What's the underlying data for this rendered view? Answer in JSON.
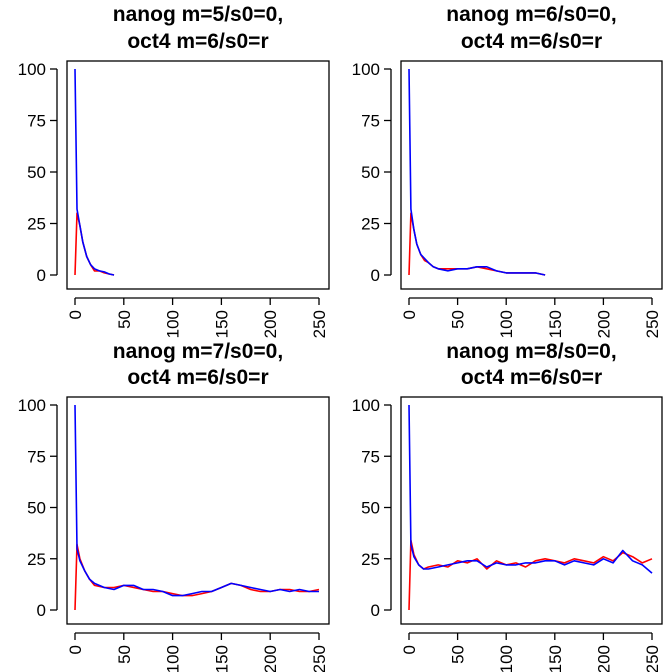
{
  "chart_data": [
    {
      "type": "line",
      "title": [
        "nanog m=5/s0=0,",
        "oct4 m=6/s0=r"
      ],
      "xlabel": "",
      "ylabel": "",
      "xlim": [
        0,
        250
      ],
      "ylim": [
        0,
        100
      ],
      "xticks": [
        "0",
        "50",
        "100",
        "150",
        "200",
        "250"
      ],
      "yticks": [
        "0",
        "25",
        "50",
        "75",
        "100"
      ],
      "series": [
        {
          "color": "#ff0000",
          "x": [
            0,
            2,
            5,
            8,
            12,
            16,
            20,
            25,
            30,
            35,
            40
          ],
          "y": [
            0,
            30,
            24,
            16,
            9,
            5,
            2,
            2,
            1,
            0.5,
            0
          ]
        },
        {
          "color": "#0000ff",
          "x": [
            0,
            2,
            5,
            8,
            12,
            16,
            20,
            25,
            30,
            35,
            40
          ],
          "y": [
            100,
            32,
            24,
            16,
            9,
            5,
            3,
            2,
            1.5,
            0.5,
            0
          ]
        }
      ]
    },
    {
      "type": "line",
      "title": [
        "nanog m=6/s0=0,",
        "oct4 m=6/s0=r"
      ],
      "xlabel": "",
      "ylabel": "",
      "xlim": [
        0,
        250
      ],
      "ylim": [
        0,
        100
      ],
      "xticks": [
        "0",
        "50",
        "100",
        "150",
        "200",
        "250"
      ],
      "yticks": [
        "0",
        "25",
        "50",
        "75",
        "100"
      ],
      "series": [
        {
          "color": "#ff0000",
          "x": [
            0,
            2,
            5,
            8,
            12,
            16,
            20,
            25,
            30,
            40,
            50,
            60,
            70,
            80,
            90,
            100,
            110,
            120,
            130,
            140
          ],
          "y": [
            0,
            30,
            22,
            15,
            10,
            7,
            6,
            4,
            3,
            3,
            3,
            3,
            4,
            3,
            2,
            1,
            1,
            1,
            1,
            0
          ]
        },
        {
          "color": "#0000ff",
          "x": [
            0,
            2,
            5,
            8,
            12,
            16,
            20,
            25,
            30,
            40,
            50,
            60,
            70,
            80,
            90,
            100,
            110,
            120,
            130,
            140
          ],
          "y": [
            100,
            32,
            22,
            15,
            10,
            8,
            6,
            4,
            3,
            2,
            3,
            3,
            4,
            4,
            2,
            1,
            1,
            1,
            1,
            0
          ]
        }
      ]
    },
    {
      "type": "line",
      "title": [
        "nanog m=7/s0=0,",
        "oct4 m=6/s0=r"
      ],
      "xlabel": "",
      "ylabel": "",
      "xlim": [
        0,
        250
      ],
      "ylim": [
        0,
        100
      ],
      "xticks": [
        "0",
        "50",
        "100",
        "150",
        "200",
        "250"
      ],
      "yticks": [
        "0",
        "25",
        "50",
        "75",
        "100"
      ],
      "series": [
        {
          "color": "#ff0000",
          "x": [
            0,
            2,
            5,
            10,
            15,
            20,
            30,
            40,
            50,
            60,
            70,
            80,
            90,
            100,
            110,
            120,
            130,
            140,
            150,
            160,
            170,
            180,
            190,
            200,
            210,
            220,
            230,
            240,
            250
          ],
          "y": [
            0,
            32,
            25,
            19,
            15,
            12,
            11,
            11,
            12,
            11,
            10,
            9,
            9,
            8,
            7,
            7,
            8,
            9,
            11,
            13,
            12,
            10,
            9,
            9,
            10,
            10,
            9,
            9,
            10
          ]
        },
        {
          "color": "#0000ff",
          "x": [
            0,
            2,
            5,
            10,
            15,
            20,
            30,
            40,
            50,
            60,
            70,
            80,
            90,
            100,
            110,
            120,
            130,
            140,
            150,
            160,
            170,
            180,
            190,
            200,
            210,
            220,
            230,
            240,
            250
          ],
          "y": [
            100,
            30,
            24,
            19,
            15,
            13,
            11,
            10,
            12,
            12,
            10,
            10,
            9,
            7,
            7,
            8,
            9,
            9,
            11,
            13,
            12,
            11,
            10,
            9,
            10,
            9,
            10,
            9,
            9
          ]
        }
      ]
    },
    {
      "type": "line",
      "title": [
        "nanog m=8/s0=0,",
        "oct4 m=6/s0=r"
      ],
      "xlabel": "",
      "ylabel": "",
      "xlim": [
        0,
        250
      ],
      "ylim": [
        0,
        100
      ],
      "xticks": [
        "0",
        "50",
        "100",
        "150",
        "200",
        "250"
      ],
      "yticks": [
        "0",
        "25",
        "50",
        "75",
        "100"
      ],
      "series": [
        {
          "color": "#ff0000",
          "x": [
            0,
            2,
            5,
            10,
            15,
            20,
            30,
            40,
            50,
            60,
            70,
            80,
            90,
            100,
            110,
            120,
            130,
            140,
            150,
            160,
            170,
            180,
            190,
            200,
            210,
            220,
            230,
            240,
            250
          ],
          "y": [
            0,
            34,
            27,
            22,
            20,
            21,
            22,
            21,
            24,
            23,
            25,
            20,
            24,
            22,
            23,
            21,
            24,
            25,
            24,
            23,
            25,
            24,
            23,
            26,
            24,
            28,
            26,
            23,
            25
          ]
        },
        {
          "color": "#0000ff",
          "x": [
            0,
            2,
            5,
            10,
            15,
            20,
            30,
            40,
            50,
            60,
            70,
            80,
            90,
            100,
            110,
            120,
            130,
            140,
            150,
            160,
            170,
            180,
            190,
            200,
            210,
            220,
            230,
            240,
            250
          ],
          "y": [
            100,
            32,
            26,
            22,
            20,
            20,
            21,
            22,
            23,
            24,
            24,
            21,
            23,
            22,
            22,
            23,
            23,
            24,
            24,
            22,
            24,
            23,
            22,
            25,
            23,
            29,
            24,
            22,
            18
          ]
        }
      ]
    }
  ]
}
